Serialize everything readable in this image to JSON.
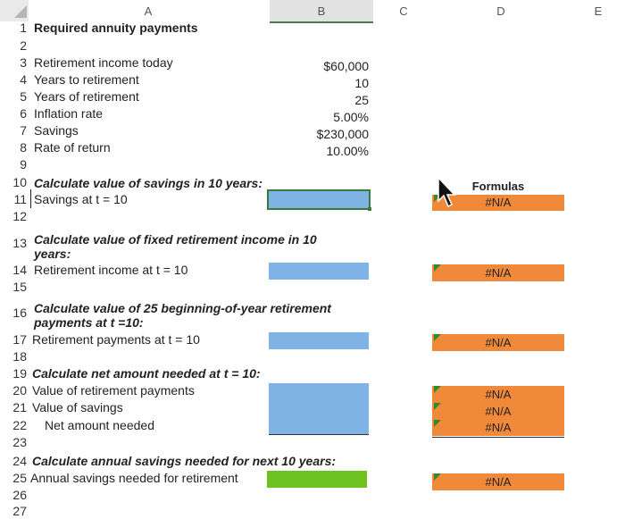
{
  "columns": [
    "A",
    "B",
    "C",
    "D",
    "E"
  ],
  "rows": [
    "1",
    "2",
    "3",
    "4",
    "5",
    "6",
    "7",
    "8",
    "9",
    "10",
    "11",
    "12",
    "13",
    "14",
    "15",
    "16",
    "17",
    "18",
    "19",
    "20",
    "21",
    "22",
    "23",
    "24",
    "25",
    "26",
    "27"
  ],
  "title": "Required annuity payments",
  "inputs": {
    "retirement_income_today": {
      "label": "Retirement income today",
      "value": "$60,000"
    },
    "years_to_retirement": {
      "label": "Years to retirement",
      "value": "10"
    },
    "years_of_retirement": {
      "label": "Years of retirement",
      "value": "25"
    },
    "inflation_rate": {
      "label": "Inflation rate",
      "value": "5.00%"
    },
    "savings": {
      "label": "Savings",
      "value": "$230,000"
    },
    "rate_of_return": {
      "label": "Rate of return",
      "value": "10.00%"
    }
  },
  "sections": {
    "s10": "Calculate value of savings in 10 years:",
    "s11": "Savings at t = 10",
    "s13a": "Calculate value of fixed retirement income in 10",
    "s13b": "years:",
    "s14": "Retirement income at t = 10",
    "s16a": "Calculate value of 25 beginning-of-year retirement",
    "s16b": "payments at t =10:",
    "s17": "Retirement payments at t = 10",
    "s19": "Calculate net amount needed at t = 10:",
    "s20": "Value of retirement payments",
    "s21": "Value of savings",
    "s22": "Net amount needed",
    "s24": "Calculate annual savings needed for next 10 years:",
    "s25": "Annual savings needed for retirement"
  },
  "formulas": {
    "header": "Formulas",
    "r11": "#N/A",
    "r14": "#N/A",
    "r17": "#N/A",
    "r20": "#N/A",
    "r21": "#N/A",
    "r22": "#N/A",
    "r25": "#N/A"
  },
  "colors": {
    "input_blue": "#7fb2e5",
    "output_green": "#6ec21f",
    "formula_orange": "#f08a3a"
  }
}
